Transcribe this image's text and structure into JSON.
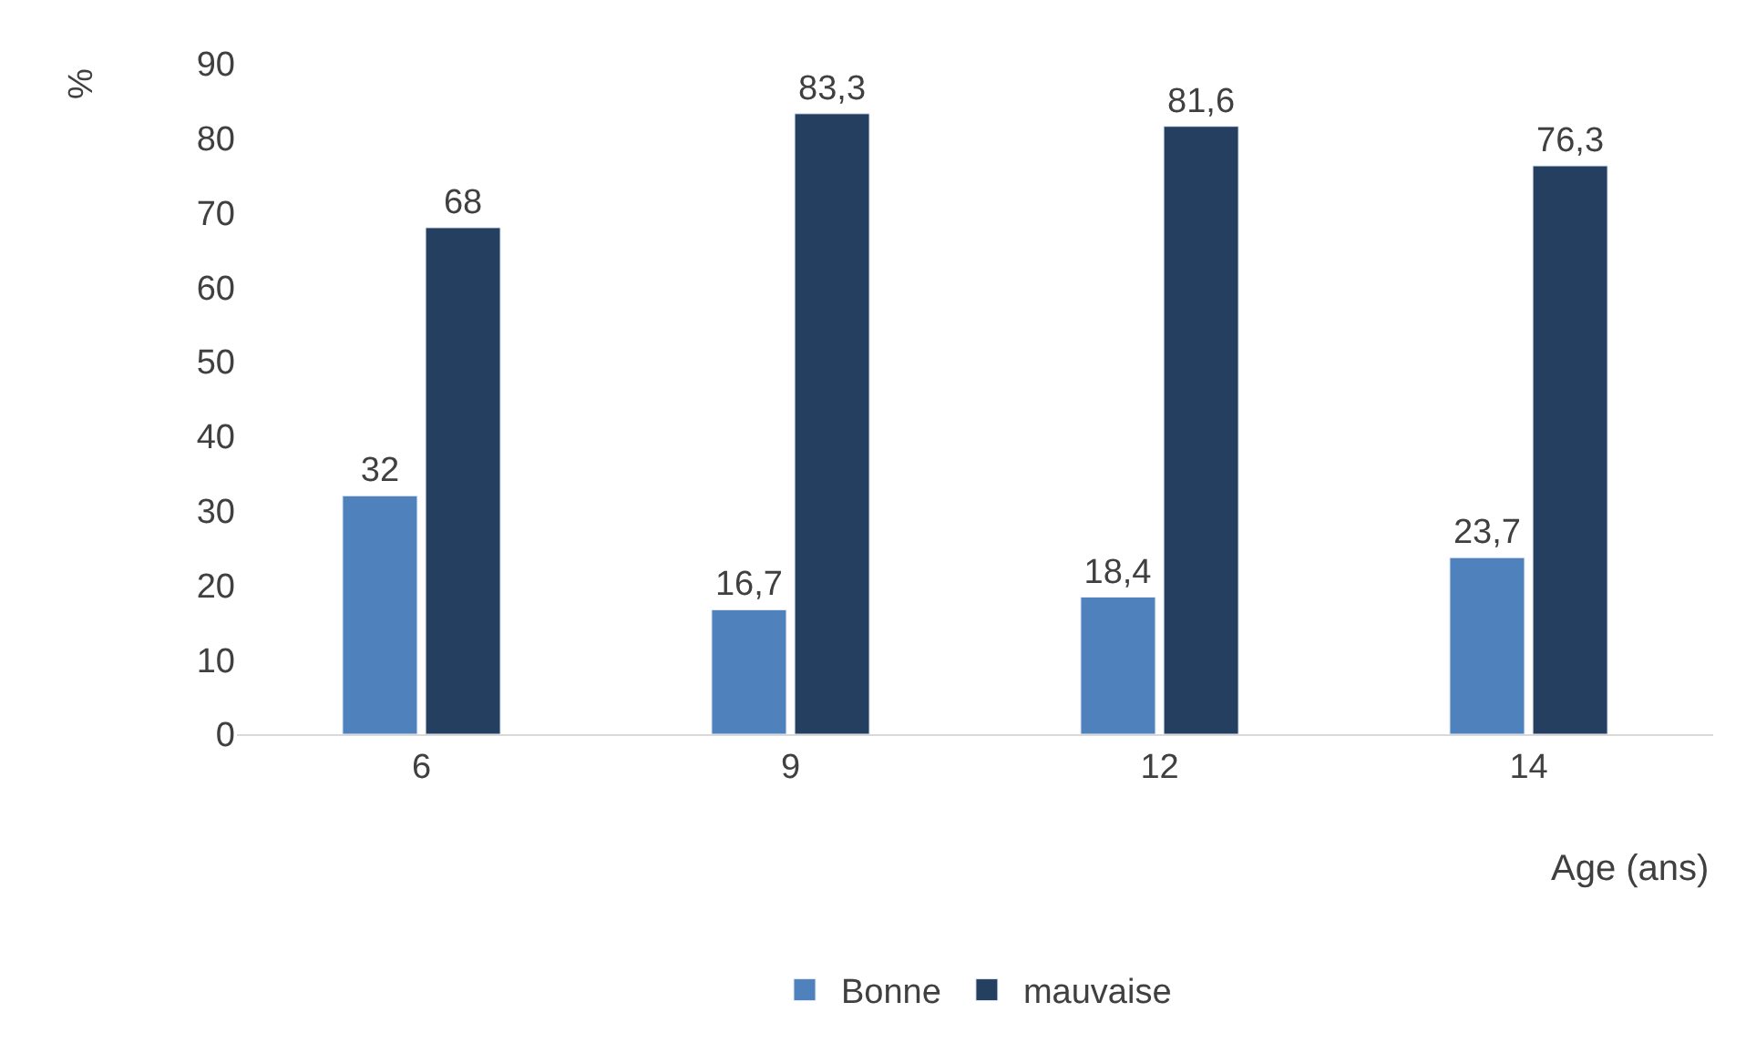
{
  "chart_data": {
    "type": "bar",
    "xlabel": "Age (ans)",
    "ylabel": "%",
    "categories": [
      "6",
      "9",
      "12",
      "14"
    ],
    "series": [
      {
        "name": "Bonne",
        "color": "#4f81bd",
        "values": [
          32,
          16.7,
          18.4,
          23.7
        ],
        "value_labels": [
          "32",
          "16,7",
          "18,4",
          "23,7"
        ]
      },
      {
        "name": "mauvaise",
        "color": "#243f60",
        "values": [
          68,
          83.3,
          81.6,
          76.3
        ],
        "value_labels": [
          "68",
          "83,3",
          "81,6",
          "76,3"
        ]
      }
    ],
    "ylim": [
      0,
      90
    ],
    "yticks": [
      0,
      10,
      20,
      30,
      40,
      50,
      60,
      70,
      80,
      90
    ],
    "grid": false,
    "legend": "bottom"
  }
}
